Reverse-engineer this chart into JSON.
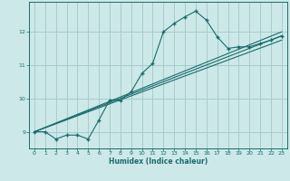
{
  "bg_color": "#cce8e8",
  "grid_color": "#a8cccc",
  "line_color": "#1a6b6b",
  "xlabel": "Humidex (Indice chaleur)",
  "xlim": [
    -0.5,
    23.5
  ],
  "ylim": [
    8.5,
    12.9
  ],
  "yticks": [
    9,
    10,
    11,
    12
  ],
  "xticks": [
    0,
    1,
    2,
    3,
    4,
    5,
    6,
    7,
    8,
    9,
    10,
    11,
    12,
    13,
    14,
    15,
    16,
    17,
    18,
    19,
    20,
    21,
    22,
    23
  ],
  "main_line_x": [
    0,
    1,
    2,
    3,
    4,
    5,
    6,
    7,
    8,
    9,
    10,
    11,
    12,
    13,
    14,
    15,
    16,
    17,
    18,
    19,
    20,
    21,
    22,
    23
  ],
  "main_line_y": [
    9.0,
    9.0,
    8.78,
    8.9,
    8.9,
    8.78,
    9.35,
    9.95,
    9.95,
    10.2,
    10.75,
    11.05,
    12.0,
    12.25,
    12.45,
    12.62,
    12.35,
    11.85,
    11.5,
    11.55,
    11.55,
    11.65,
    11.75,
    11.88
  ],
  "line2_x": [
    0,
    23
  ],
  "line2_y": [
    9.0,
    11.75
  ],
  "line3_x": [
    0,
    23
  ],
  "line3_y": [
    9.0,
    11.88
  ],
  "line4_x": [
    0,
    23
  ],
  "line4_y": [
    9.0,
    12.0
  ]
}
